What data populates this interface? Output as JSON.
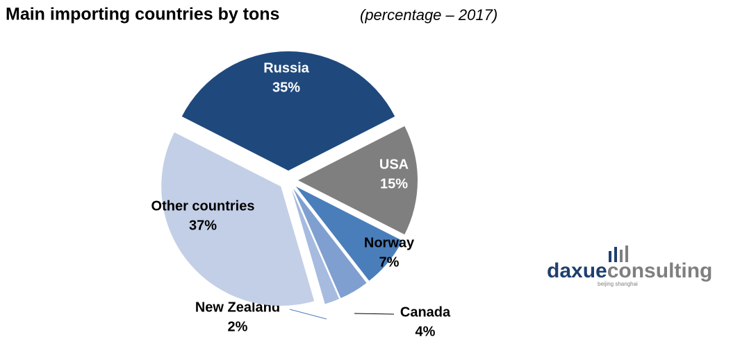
{
  "chart_data": {
    "type": "pie",
    "title": "Main importing countries by tons",
    "subtitle": "(percentage – 2017)",
    "categories": [
      "Russia",
      "USA",
      "Norway",
      "Canada",
      "New Zealand",
      "Other countries"
    ],
    "values": [
      35,
      15,
      7,
      4,
      2,
      37
    ],
    "value_labels": [
      "35%",
      "15%",
      "7%",
      "4%",
      "2%",
      "37%"
    ],
    "colors": [
      "#1f497d",
      "#7f7f7f",
      "#4a7ebb",
      "#7f9fd0",
      "#a6bbdf",
      "#c3cfe6"
    ]
  },
  "logo": {
    "brand_a": "daxue",
    "brand_b": "consulting",
    "tagline": "beijing shanghai"
  }
}
